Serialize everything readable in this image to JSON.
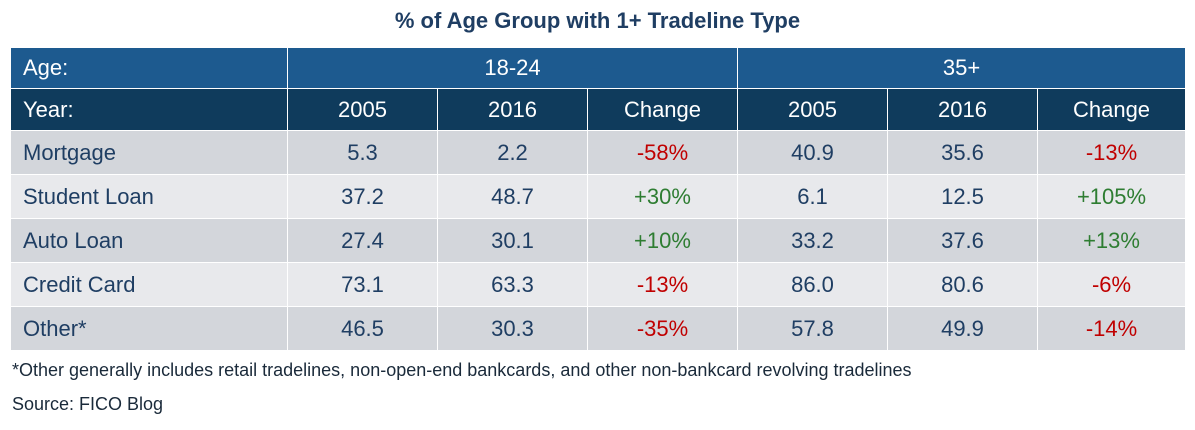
{
  "chart_data": {
    "type": "table",
    "title": "% of Age Group with 1+ Tradeline Type",
    "age_label": "Age:",
    "age_groups": [
      "18-24",
      "35+"
    ],
    "year_label": "Year:",
    "columns": [
      "2005",
      "2016",
      "Change",
      "2005",
      "2016",
      "Change"
    ],
    "rows": [
      {
        "label": "Mortgage",
        "cells": [
          "5.3",
          "2.2",
          "-58%",
          "40.9",
          "35.6",
          "-13%"
        ]
      },
      {
        "label": "Student Loan",
        "cells": [
          "37.2",
          "48.7",
          "+30%",
          "6.1",
          "12.5",
          "+105%"
        ]
      },
      {
        "label": "Auto Loan",
        "cells": [
          "27.4",
          "30.1",
          "+10%",
          "33.2",
          "37.6",
          "+13%"
        ]
      },
      {
        "label": "Credit Card",
        "cells": [
          "73.1",
          "63.3",
          "-13%",
          "86.0",
          "80.6",
          "-6%"
        ]
      },
      {
        "label": "Other*",
        "cells": [
          "46.5",
          "30.3",
          "-35%",
          "57.8",
          "49.9",
          "-14%"
        ]
      }
    ],
    "footnote": "*Other generally includes retail tradelines, non-open-end bankcards, and other non-bankcard revolving tradelines",
    "source": "Source: FICO Blog",
    "colors": {
      "title": "#1f3e63",
      "age_header_bg": "#1d5a8f",
      "year_header_bg": "#0f3b5c",
      "row_dark_bg": "#d3d6db",
      "row_light_bg": "#e8e9ec",
      "negative": "#c00000",
      "positive": "#2e7d32"
    }
  }
}
